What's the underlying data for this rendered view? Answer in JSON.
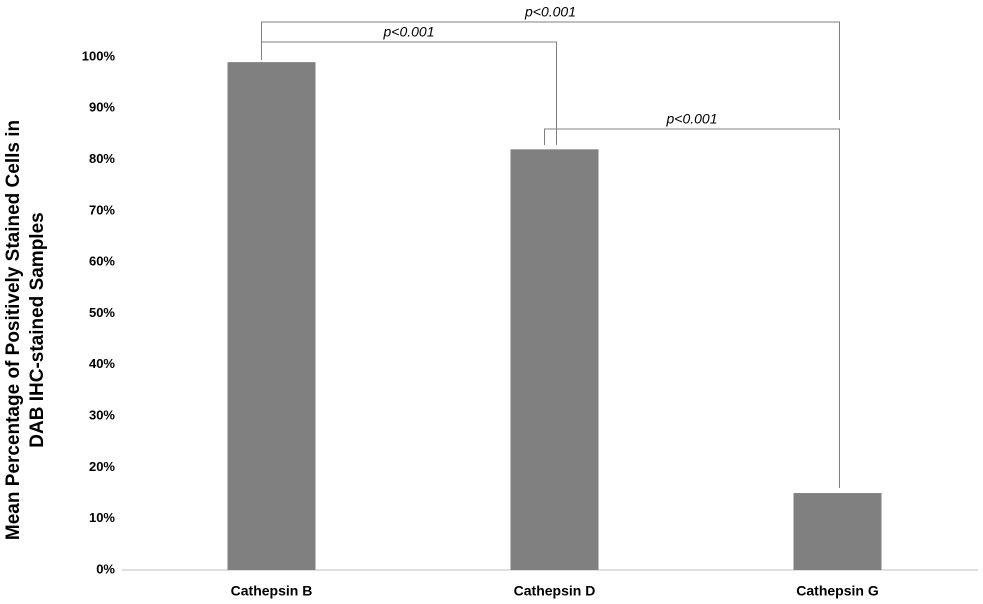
{
  "chart_data": {
    "type": "bar",
    "y_label": [
      "Mean Percentage of Positively Stained Cells in",
      "DAB IHC-stained Samples"
    ],
    "categories": [
      "Cathepsin B",
      "Cathepsin D",
      "Cathepsin G"
    ],
    "values": [
      99,
      82,
      15
    ],
    "color": "#808080",
    "ylim": [
      0,
      100
    ],
    "yticks": [
      {
        "value": 0,
        "label": "0%"
      },
      {
        "value": 10,
        "label": "10%"
      },
      {
        "value": 20,
        "label": "20%"
      },
      {
        "value": 30,
        "label": "30%"
      },
      {
        "value": 40,
        "label": "40%"
      },
      {
        "value": 50,
        "label": "50%"
      },
      {
        "value": 60,
        "label": "60%"
      },
      {
        "value": 70,
        "label": "70%"
      },
      {
        "value": 80,
        "label": "80%"
      },
      {
        "value": 90,
        "label": "90%"
      },
      {
        "value": 100,
        "label": "100%"
      }
    ],
    "grid": false,
    "annotations": [
      {
        "text": "p<0.001",
        "from": 0,
        "to": 1
      },
      {
        "text": "p<0.001",
        "from": 0,
        "to": 2
      },
      {
        "text": "p<0.001",
        "from": 1,
        "to": 2
      }
    ]
  }
}
